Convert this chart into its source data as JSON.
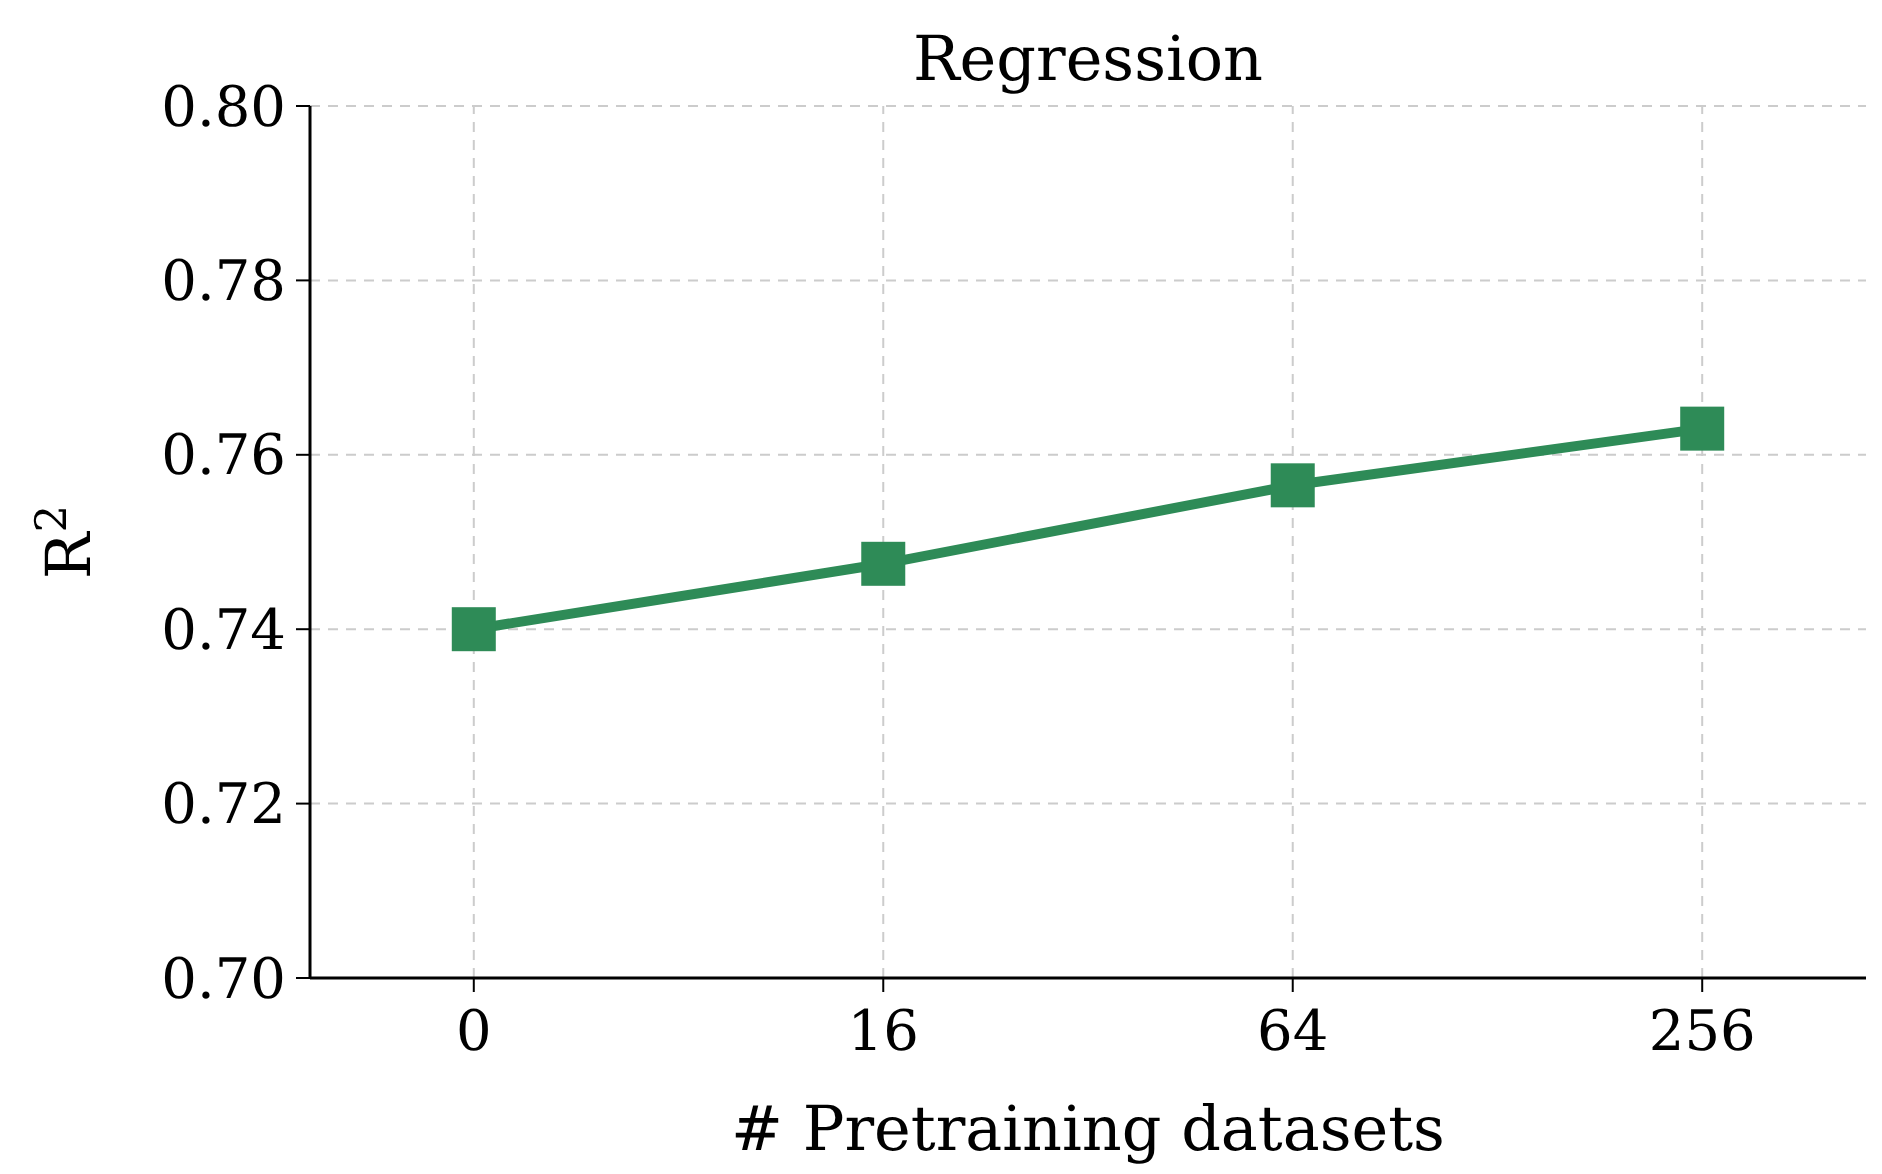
{
  "chart_data": {
    "type": "line",
    "title": "Regression",
    "xlabel": "# Pretraining datasets",
    "ylabel": "R$^{2}$",
    "categories": [
      "0",
      "16",
      "64",
      "256"
    ],
    "series": [
      {
        "color": "#2e8b57",
        "values": [
          0.74,
          0.7475,
          0.7565,
          0.763
        ]
      }
    ],
    "ylim": [
      0.7,
      0.8
    ],
    "yticks": [
      {
        "value": 0.7,
        "label": "0.70"
      },
      {
        "value": 0.72,
        "label": "0.72"
      },
      {
        "value": 0.74,
        "label": "0.74"
      },
      {
        "value": 0.76,
        "label": "0.76"
      },
      {
        "value": 0.78,
        "label": "0.78"
      },
      {
        "value": 0.8,
        "label": "0.80"
      }
    ],
    "grid": true,
    "marker": "square",
    "line_style": "solid"
  }
}
